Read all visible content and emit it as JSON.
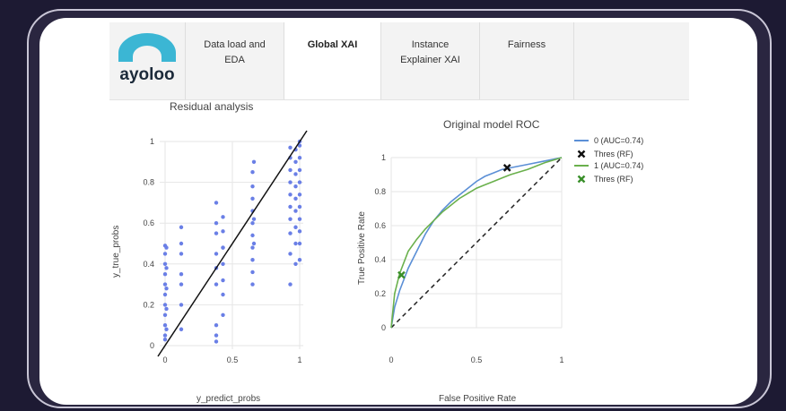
{
  "nav": {
    "logo_text": "ayoloo",
    "tabs": [
      {
        "line1": "Data load and",
        "line2": "EDA"
      },
      {
        "line1": "Global XAI",
        "line2": ""
      },
      {
        "line1": "Instance",
        "line2": "Explainer XAI"
      },
      {
        "line1": "Fairness",
        "line2": ""
      }
    ],
    "active_tab": "Global XAI"
  },
  "residual": {
    "title": "Residual analysis",
    "xlabel": "y_predict_probs",
    "ylabel": "y_true_probs",
    "xticks": [
      "0",
      "0.5",
      "1"
    ],
    "yticks": [
      "0",
      "0.2",
      "0.4",
      "0.6",
      "0.8",
      "1"
    ]
  },
  "roc": {
    "title": "Original model ROC",
    "xlabel": "False Positive Rate",
    "ylabel": "True Positive Rate",
    "xticks": [
      "0",
      "0.5",
      "1"
    ],
    "yticks": [
      "0",
      "0.2",
      "0.4",
      "0.6",
      "0.8",
      "1"
    ],
    "legend": [
      "0 (AUC=0.74)",
      "Thres (RF)",
      "1 (AUC=0.74)",
      "Thres (RF)"
    ]
  },
  "colors": {
    "points": "#6a7fe6",
    "class0": "#5b8fd6",
    "class1": "#6ab04c",
    "thres0": "#111111",
    "thres1": "#3a8f2a"
  },
  "chart_data": [
    {
      "type": "scatter",
      "title": "Residual analysis",
      "xlabel": "y_predict_probs",
      "ylabel": "y_true_probs",
      "xlim": [
        0,
        1
      ],
      "ylim": [
        0,
        1
      ],
      "series": [
        {
          "values": [
            [
              0,
              0.05
            ],
            [
              0,
              0.1
            ],
            [
              0,
              0.15
            ],
            [
              0,
              0.2
            ],
            [
              0,
              0.25
            ],
            [
              0,
              0.3
            ],
            [
              0,
              0.35
            ],
            [
              0,
              0.4
            ],
            [
              0,
              0.45
            ],
            [
              0.01,
              0.08
            ],
            [
              0.01,
              0.18
            ],
            [
              0.01,
              0.28
            ],
            [
              0.01,
              0.38
            ],
            [
              0.01,
              0.48
            ],
            [
              0,
              0.49
            ],
            [
              0,
              0.03
            ],
            [
              0.12,
              0.08
            ],
            [
              0.12,
              0.2
            ],
            [
              0.12,
              0.3
            ],
            [
              0.12,
              0.35
            ],
            [
              0.12,
              0.45
            ],
            [
              0.12,
              0.5
            ],
            [
              0.12,
              0.58
            ],
            [
              0.38,
              0.02
            ],
            [
              0.38,
              0.05
            ],
            [
              0.38,
              0.1
            ],
            [
              0.38,
              0.3
            ],
            [
              0.38,
              0.38
            ],
            [
              0.38,
              0.45
            ],
            [
              0.38,
              0.55
            ],
            [
              0.38,
              0.6
            ],
            [
              0.38,
              0.7
            ],
            [
              0.43,
              0.15
            ],
            [
              0.43,
              0.25
            ],
            [
              0.43,
              0.32
            ],
            [
              0.43,
              0.4
            ],
            [
              0.43,
              0.48
            ],
            [
              0.43,
              0.56
            ],
            [
              0.43,
              0.63
            ],
            [
              0.43,
              0.48
            ],
            [
              0.65,
              0.3
            ],
            [
              0.65,
              0.36
            ],
            [
              0.65,
              0.42
            ],
            [
              0.65,
              0.48
            ],
            [
              0.65,
              0.54
            ],
            [
              0.65,
              0.6
            ],
            [
              0.65,
              0.66
            ],
            [
              0.65,
              0.72
            ],
            [
              0.65,
              0.78
            ],
            [
              0.65,
              0.85
            ],
            [
              0.66,
              0.9
            ],
            [
              0.66,
              0.5
            ],
            [
              0.66,
              0.62
            ],
            [
              0.93,
              0.3
            ],
            [
              0.93,
              0.45
            ],
            [
              0.93,
              0.55
            ],
            [
              0.93,
              0.62
            ],
            [
              0.93,
              0.68
            ],
            [
              0.93,
              0.74
            ],
            [
              0.93,
              0.8
            ],
            [
              0.93,
              0.86
            ],
            [
              0.93,
              0.92
            ],
            [
              0.93,
              0.97
            ],
            [
              0.97,
              0.4
            ],
            [
              0.97,
              0.5
            ],
            [
              0.97,
              0.58
            ],
            [
              0.97,
              0.66
            ],
            [
              0.97,
              0.72
            ],
            [
              0.97,
              0.78
            ],
            [
              0.97,
              0.84
            ],
            [
              0.97,
              0.9
            ],
            [
              0.97,
              0.96
            ],
            [
              1,
              0.42
            ],
            [
              1,
              0.5
            ],
            [
              1,
              0.56
            ],
            [
              1,
              0.62
            ],
            [
              1,
              0.68
            ],
            [
              1,
              0.74
            ],
            [
              1,
              0.8
            ],
            [
              1,
              0.86
            ],
            [
              1,
              0.92
            ],
            [
              1,
              0.98
            ],
            [
              1,
              1
            ]
          ]
        },
        {
          "line": [
            [
              0,
              0
            ],
            [
              1,
              1
            ]
          ]
        }
      ]
    },
    {
      "type": "line",
      "title": "Original model ROC",
      "xlabel": "False Positive Rate",
      "ylabel": "True Positive Rate",
      "xlim": [
        0,
        1
      ],
      "ylim": [
        0,
        1
      ],
      "series": [
        {
          "name": "0 (AUC=0.74)",
          "x": [
            0,
            0.02,
            0.05,
            0.1,
            0.15,
            0.2,
            0.25,
            0.3,
            0.35,
            0.4,
            0.45,
            0.5,
            0.55,
            0.6,
            0.65,
            0.7,
            0.8,
            0.9,
            1
          ],
          "y": [
            0,
            0.12,
            0.22,
            0.35,
            0.45,
            0.55,
            0.63,
            0.69,
            0.74,
            0.78,
            0.82,
            0.86,
            0.89,
            0.91,
            0.93,
            0.94,
            0.96,
            0.98,
            1
          ]
        },
        {
          "name": "1 (AUC=0.74)",
          "x": [
            0,
            0.02,
            0.05,
            0.1,
            0.15,
            0.2,
            0.25,
            0.3,
            0.35,
            0.4,
            0.45,
            0.5,
            0.55,
            0.6,
            0.65,
            0.7,
            0.8,
            0.9,
            1
          ],
          "y": [
            0,
            0.2,
            0.32,
            0.45,
            0.52,
            0.58,
            0.63,
            0.68,
            0.72,
            0.76,
            0.79,
            0.82,
            0.84,
            0.86,
            0.88,
            0.9,
            0.93,
            0.97,
            1
          ]
        },
        {
          "name": "Thres (RF)",
          "points": [
            [
              0.68,
              0.94
            ]
          ]
        },
        {
          "name": "Thres (RF)",
          "points": [
            [
              0.06,
              0.31
            ]
          ]
        },
        {
          "name": "chance",
          "x": [
            0,
            1
          ],
          "y": [
            0,
            1
          ],
          "style": "dashed"
        }
      ]
    }
  ]
}
